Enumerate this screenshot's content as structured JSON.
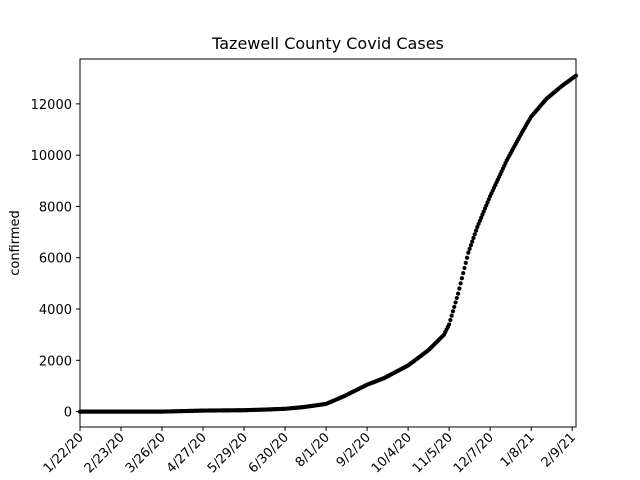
{
  "chart_data": {
    "type": "scatter",
    "title": "Tazewell County Covid Cases",
    "xlabel": "",
    "ylabel": "confirmed",
    "x_start": "1/22/20",
    "x_end": "2/12/21",
    "ylim": [
      -600,
      13750
    ],
    "yticks": [
      0,
      2000,
      4000,
      6000,
      8000,
      10000,
      12000
    ],
    "xtick_labels": [
      "1/22/20",
      "2/23/20",
      "3/26/20",
      "4/27/20",
      "5/29/20",
      "6/30/20",
      "8/1/20",
      "9/2/20",
      "10/4/20",
      "11/5/20",
      "12/7/20",
      "1/8/21",
      "2/9/21"
    ],
    "grid": false,
    "marker_color": "#000000",
    "series": [
      {
        "anchors": [
          {
            "x": "1/22/20",
            "y": 0
          },
          {
            "x": "3/26/20",
            "y": 0
          },
          {
            "x": "4/27/20",
            "y": 40
          },
          {
            "x": "5/29/20",
            "y": 55
          },
          {
            "x": "6/15/20",
            "y": 80
          },
          {
            "x": "6/30/20",
            "y": 110
          },
          {
            "x": "7/15/20",
            "y": 180
          },
          {
            "x": "8/1/20",
            "y": 300
          },
          {
            "x": "8/15/20",
            "y": 600
          },
          {
            "x": "9/2/20",
            "y": 1050
          },
          {
            "x": "9/15/20",
            "y": 1300
          },
          {
            "x": "10/4/20",
            "y": 1800
          },
          {
            "x": "10/20/20",
            "y": 2400
          },
          {
            "x": "11/1/20",
            "y": 3000
          },
          {
            "x": "11/5/20",
            "y": 3400
          },
          {
            "x": "11/12/20",
            "y": 4600
          },
          {
            "x": "11/20/20",
            "y": 6200
          },
          {
            "x": "11/27/20",
            "y": 7200
          },
          {
            "x": "12/7/20",
            "y": 8400
          },
          {
            "x": "12/20/20",
            "y": 9800
          },
          {
            "x": "1/1/21",
            "y": 10900
          },
          {
            "x": "1/8/21",
            "y": 11500
          },
          {
            "x": "1/20/21",
            "y": 12200
          },
          {
            "x": "2/1/21",
            "y": 12700
          },
          {
            "x": "2/12/21",
            "y": 13100
          }
        ]
      }
    ]
  }
}
